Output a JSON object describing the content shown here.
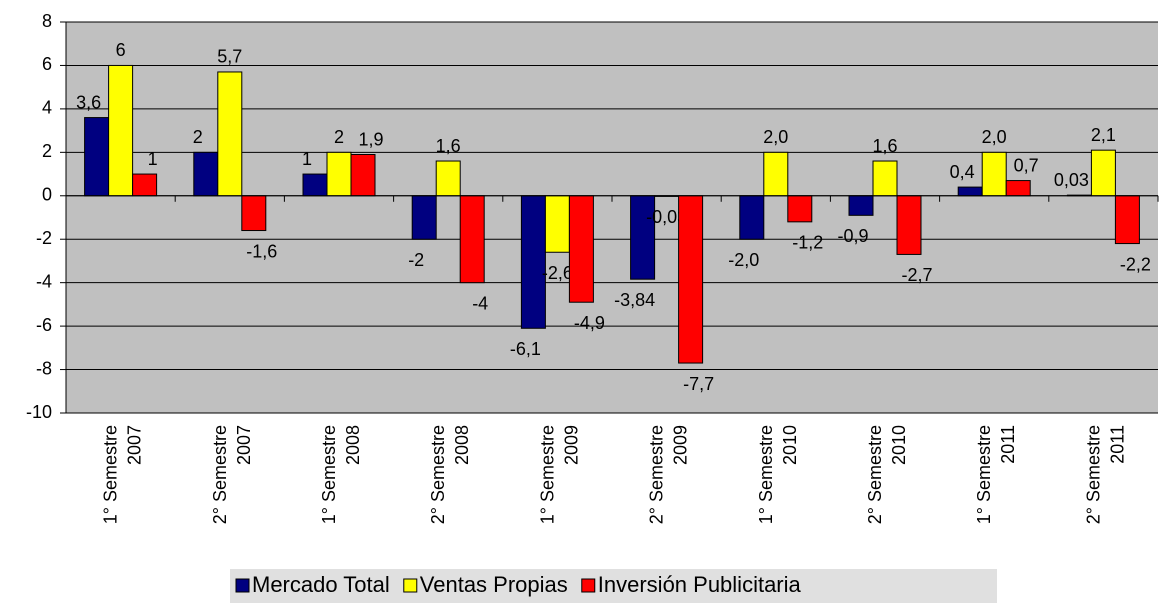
{
  "chart_data": {
    "type": "bar",
    "categories": [
      "1° Semestre 2007",
      "2° Semestre 2007",
      "1° Semestre 2008",
      "2° Semestre 2008",
      "1° Semestre 2009",
      "2° Semestre 2009",
      "1° Semestre 2010",
      "2° Semestre 2010",
      "1° Semestre 2011",
      "2° Semestre 2011"
    ],
    "series": [
      {
        "name": "Mercado Total",
        "color": "#000080",
        "values": [
          3.6,
          2,
          1,
          -2,
          -6.1,
          -3.84,
          -2.0,
          -0.9,
          0.4,
          0.03
        ],
        "value_labels": [
          "3,6",
          "2",
          "1",
          "-2",
          "-6,1",
          "-3,84",
          "-2,0",
          "-0,9",
          "0,4",
          "0,03"
        ]
      },
      {
        "name": "Ventas Propias",
        "color": "#ffff00",
        "values": [
          6,
          5.7,
          2,
          1.6,
          -2.6,
          -0.03,
          2.0,
          1.6,
          2.0,
          2.1
        ],
        "value_labels": [
          "6",
          "5,7",
          "2",
          "1,6",
          "-2,6",
          "-0,03",
          "2,0",
          "1,6",
          "2,0",
          "2,1"
        ]
      },
      {
        "name": "Inversión Publicitaria",
        "color": "#ff0000",
        "values": [
          1,
          -1.6,
          1.9,
          -4,
          -4.9,
          -7.7,
          -1.2,
          -2.7,
          0.7,
          -2.2
        ],
        "value_labels": [
          "1",
          "-1,6",
          "1,9",
          "-4",
          "-4,9",
          "-7,7",
          "-1,2",
          "-2,7",
          "0,7",
          "-2,2"
        ]
      }
    ],
    "ylim": [
      -10,
      8
    ],
    "yticks": [
      -10,
      -8,
      -6,
      -4,
      -2,
      0,
      2,
      4,
      6,
      8
    ],
    "grid": true,
    "legend": "bottom"
  }
}
